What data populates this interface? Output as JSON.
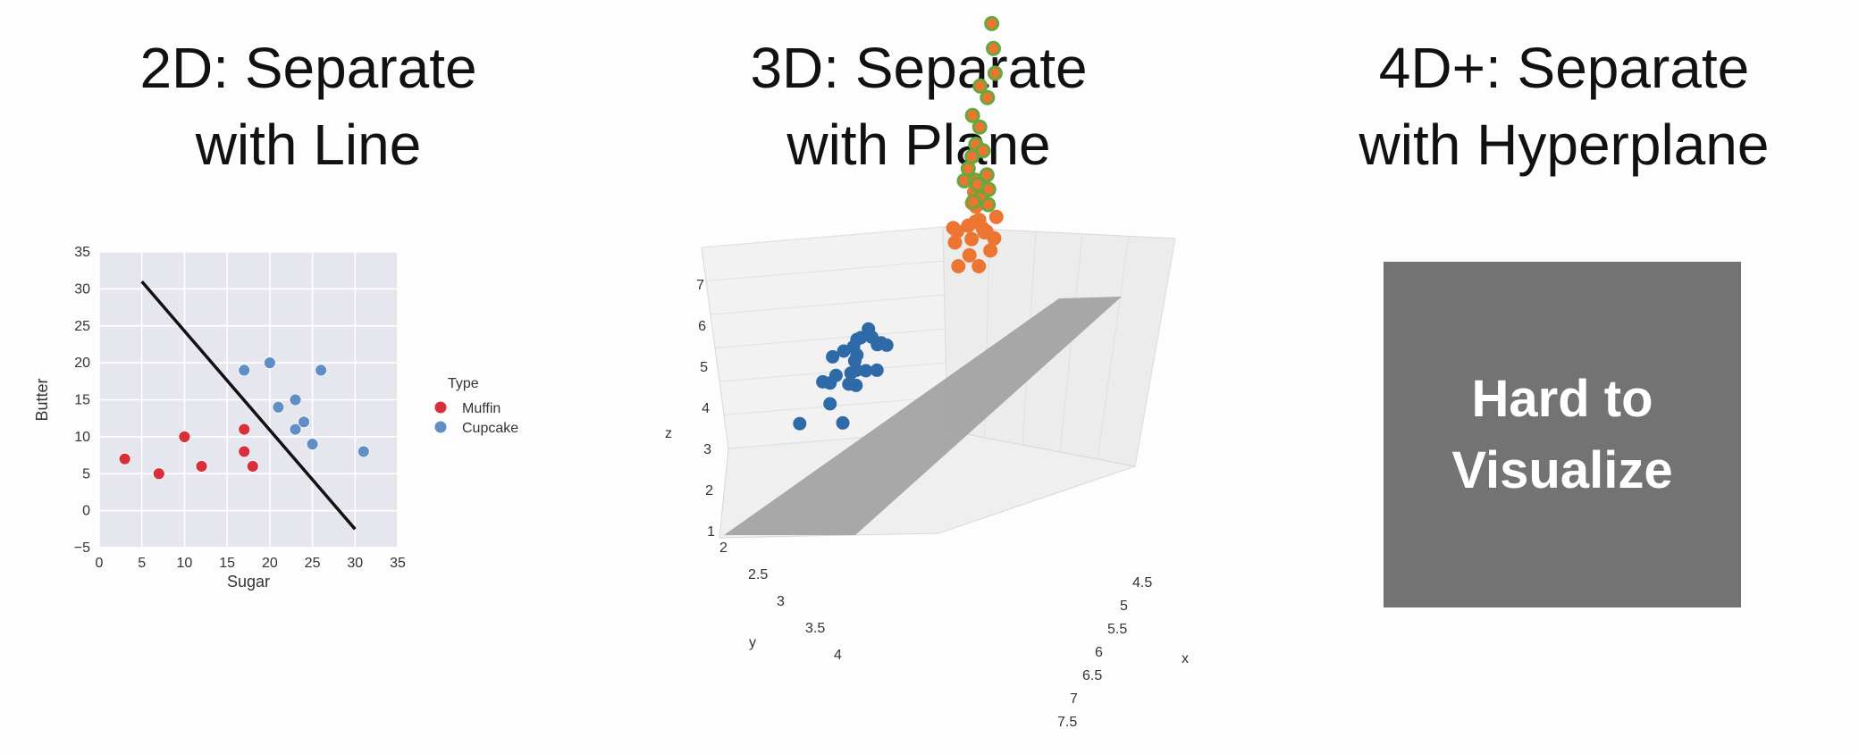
{
  "panels": {
    "p2d": {
      "title_line1": "2D: Separate",
      "title_line2": "with Line"
    },
    "p3d": {
      "title_line1": "3D: Separate",
      "title_line2": "with Plane"
    },
    "p4d": {
      "title_line1": "4D+: Separate",
      "title_line2": "with Hyperplane"
    }
  },
  "hard_box": {
    "line1": "Hard to",
    "line2": "Visualize",
    "color": "#737373"
  },
  "colors": {
    "muffin": "#d7303a",
    "cupcake": "#5f8fc4",
    "orange": "#ec7631",
    "green": "#66a83c",
    "blue": "#2f6aa8",
    "plane": "#9b9b9b",
    "line": "#111111",
    "plot_bg": "#e6e6ef"
  },
  "chart_data": [
    {
      "type": "scatter",
      "xlabel": "Sugar",
      "ylabel": "Butter",
      "xlim": [
        0,
        35
      ],
      "ylim": [
        -5,
        35
      ],
      "xticks": [
        "0",
        "5",
        "10",
        "15",
        "20",
        "25",
        "30",
        "35"
      ],
      "yticks": [
        "−5",
        "0",
        "5",
        "10",
        "15",
        "20",
        "25",
        "30",
        "35"
      ],
      "grid": true,
      "legend_title": "Type",
      "legend_position": "right",
      "series": [
        {
          "name": "Muffin",
          "points": [
            [
              3,
              7
            ],
            [
              7,
              5
            ],
            [
              10,
              10
            ],
            [
              12,
              6
            ],
            [
              17,
              11
            ],
            [
              17,
              8
            ],
            [
              18,
              6
            ]
          ]
        },
        {
          "name": "Cupcake",
          "points": [
            [
              17,
              19
            ],
            [
              20,
              20
            ],
            [
              21,
              14
            ],
            [
              23,
              15
            ],
            [
              23,
              11
            ],
            [
              24,
              12
            ],
            [
              25,
              9
            ],
            [
              26,
              19
            ],
            [
              31,
              8
            ]
          ]
        }
      ],
      "separator_line": [
        [
          5,
          31
        ],
        [
          30,
          -2.5
        ]
      ]
    },
    {
      "type": "scatter3d",
      "xlabel": "x",
      "ylabel": "y",
      "zlabel": "z",
      "xticks": [
        "4.5",
        "5",
        "5.5",
        "6",
        "6.5",
        "7",
        "7.5"
      ],
      "yticks": [
        "2",
        "2.5",
        "3",
        "3.5",
        "4"
      ],
      "zticks": [
        "1",
        "2",
        "3",
        "4",
        "5",
        "6",
        "7"
      ],
      "grid": true,
      "series": [
        {
          "name": "",
          "points": [
            [
              5.1,
              2.0,
              6.8
            ],
            [
              5.3,
              2.1,
              6.5
            ],
            [
              5.5,
              2.2,
              6.2
            ],
            [
              5.4,
              2.3,
              6.0
            ],
            [
              5.7,
              2.4,
              6.0
            ],
            [
              5.6,
              2.5,
              5.7
            ],
            [
              5.9,
              2.6,
              5.7
            ],
            [
              6.0,
              2.7,
              5.5
            ],
            [
              6.1,
              2.8,
              5.4
            ],
            [
              6.2,
              2.9,
              5.3
            ],
            [
              6.3,
              2.8,
              5.6
            ],
            [
              6.3,
              3.0,
              5.2
            ],
            [
              6.4,
              2.9,
              5.1
            ],
            [
              6.5,
              3.0,
              5.3
            ],
            [
              6.6,
              3.0,
              5.0
            ],
            [
              6.7,
              3.1,
              5.4
            ],
            [
              6.8,
              3.2,
              5.2
            ],
            [
              6.9,
              3.1,
              5.1
            ],
            [
              6.2,
              2.7,
              5.0
            ],
            [
              6.4,
              2.8,
              4.9
            ]
          ]
        },
        {
          "name": "",
          "points": [
            [
              5.8,
              2.6,
              4.4
            ],
            [
              6.0,
              2.7,
              4.3
            ],
            [
              6.1,
              2.8,
              4.5
            ],
            [
              6.2,
              2.9,
              4.2
            ],
            [
              6.3,
              2.8,
              4.6
            ],
            [
              6.4,
              2.9,
              4.4
            ],
            [
              6.5,
              3.0,
              4.5
            ],
            [
              6.6,
              3.1,
              4.3
            ],
            [
              6.7,
              3.0,
              4.4
            ],
            [
              6.8,
              3.1,
              4.6
            ],
            [
              6.9,
              3.2,
              4.0
            ],
            [
              6.3,
              3.1,
              4.1
            ],
            [
              6.5,
              2.8,
              4.0
            ],
            [
              6.1,
              3.0,
              4.2
            ],
            [
              7.0,
              3.2,
              4.7
            ],
            [
              6.7,
              3.3,
              4.0
            ],
            [
              6.2,
              2.6,
              4.1
            ],
            [
              6.0,
              2.9,
              4.0
            ],
            [
              6.6,
              2.9,
              3.9
            ],
            [
              6.9,
              3.3,
              4.3
            ]
          ]
        },
        {
          "name": "",
          "points": [
            [
              5.0,
              3.4,
              1.5
            ],
            [
              4.9,
              3.0,
              1.4
            ],
            [
              4.7,
              3.2,
              1.3
            ],
            [
              4.6,
              3.1,
              1.5
            ],
            [
              5.0,
              3.6,
              1.4
            ],
            [
              5.4,
              3.9,
              1.7
            ],
            [
              4.6,
              3.4,
              1.4
            ],
            [
              5.0,
              3.4,
              1.5
            ],
            [
              4.4,
              2.9,
              1.4
            ],
            [
              4.9,
              3.1,
              1.5
            ],
            [
              5.4,
              3.7,
              1.5
            ],
            [
              4.8,
              3.4,
              1.6
            ],
            [
              4.8,
              3.0,
              1.4
            ],
            [
              4.3,
              3.0,
              1.1
            ],
            [
              5.8,
              4.0,
              1.2
            ],
            [
              5.7,
              4.4,
              1.5
            ],
            [
              5.4,
              3.9,
              1.3
            ],
            [
              5.1,
              3.5,
              1.4
            ],
            [
              5.7,
              3.8,
              1.7
            ],
            [
              5.1,
              3.8,
              1.5
            ],
            [
              5.2,
              3.5,
              1.5
            ],
            [
              5.2,
              3.4,
              1.4
            ],
            [
              4.7,
              3.2,
              1.6
            ],
            [
              4.8,
              3.1,
              1.6
            ],
            [
              5.4,
              3.4,
              1.5
            ]
          ]
        }
      ]
    }
  ]
}
